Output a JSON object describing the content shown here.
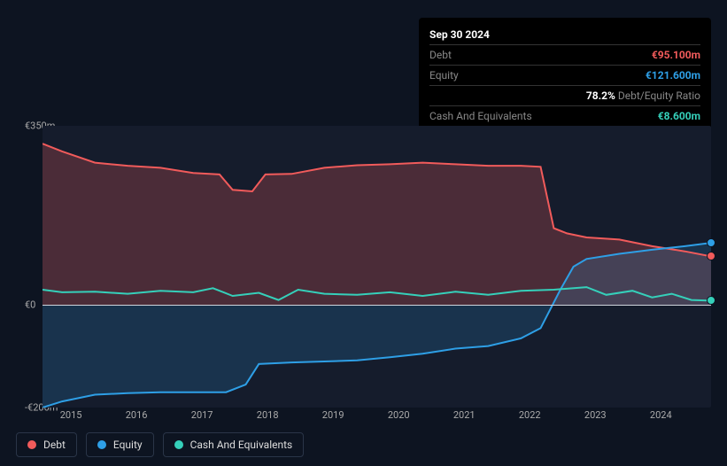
{
  "tooltip": {
    "date": "Sep 30 2024",
    "rows": [
      {
        "label": "Debt",
        "value": "€95.100m",
        "color": "#f15b5b"
      },
      {
        "label": "Equity",
        "value": "€121.600m",
        "color": "#2e9fe6"
      },
      {
        "label": "",
        "value": "78.2%",
        "suffix": "Debt/Equity Ratio",
        "color": "#ffffff"
      },
      {
        "label": "Cash And Equivalents",
        "value": "€8.600m",
        "color": "#35d0ba"
      }
    ]
  },
  "chart": {
    "type": "line-area",
    "background": "#151c2c",
    "page_background": "#0d1421",
    "ylim": [
      -200,
      350
    ],
    "y_ticks": [
      {
        "v": 350,
        "label": "€350m"
      },
      {
        "v": 0,
        "label": "€0"
      },
      {
        "v": -200,
        "label": "-€200m"
      }
    ],
    "x_years": [
      2015,
      2016,
      2017,
      2018,
      2019,
      2020,
      2021,
      2022,
      2023,
      2024
    ],
    "x_range": [
      2014.7,
      2024.9
    ],
    "zero_line_color": "#cfd4dc",
    "grid_color": "#2a3548",
    "series": {
      "debt": {
        "color": "#f15b5b",
        "fill": "rgba(241,91,91,0.25)",
        "points": [
          [
            2014.7,
            315
          ],
          [
            2015.0,
            300
          ],
          [
            2015.5,
            278
          ],
          [
            2016.0,
            272
          ],
          [
            2016.5,
            268
          ],
          [
            2017.0,
            258
          ],
          [
            2017.4,
            255
          ],
          [
            2017.6,
            225
          ],
          [
            2017.9,
            222
          ],
          [
            2018.1,
            255
          ],
          [
            2018.5,
            256
          ],
          [
            2019.0,
            268
          ],
          [
            2019.5,
            273
          ],
          [
            2020.0,
            275
          ],
          [
            2020.5,
            278
          ],
          [
            2021.0,
            275
          ],
          [
            2021.5,
            272
          ],
          [
            2022.0,
            272
          ],
          [
            2022.3,
            270
          ],
          [
            2022.5,
            150
          ],
          [
            2022.7,
            140
          ],
          [
            2023.0,
            132
          ],
          [
            2023.5,
            128
          ],
          [
            2024.0,
            115
          ],
          [
            2024.5,
            105
          ],
          [
            2024.9,
            95
          ]
        ]
      },
      "equity": {
        "color": "#2e9fe6",
        "fill": "rgba(46,159,230,0.18)",
        "points": [
          [
            2014.7,
            -200
          ],
          [
            2015.0,
            -188
          ],
          [
            2015.5,
            -175
          ],
          [
            2016.0,
            -172
          ],
          [
            2016.5,
            -170
          ],
          [
            2017.0,
            -170
          ],
          [
            2017.5,
            -170
          ],
          [
            2017.8,
            -155
          ],
          [
            2018.0,
            -115
          ],
          [
            2018.5,
            -112
          ],
          [
            2019.0,
            -110
          ],
          [
            2019.5,
            -108
          ],
          [
            2020.0,
            -102
          ],
          [
            2020.5,
            -95
          ],
          [
            2021.0,
            -85
          ],
          [
            2021.5,
            -80
          ],
          [
            2022.0,
            -65
          ],
          [
            2022.3,
            -45
          ],
          [
            2022.6,
            30
          ],
          [
            2022.8,
            75
          ],
          [
            2023.0,
            90
          ],
          [
            2023.5,
            100
          ],
          [
            2024.0,
            108
          ],
          [
            2024.5,
            115
          ],
          [
            2024.9,
            121.6
          ]
        ]
      },
      "cash": {
        "color": "#35d0ba",
        "fill": "none",
        "points": [
          [
            2014.7,
            30
          ],
          [
            2015.0,
            25
          ],
          [
            2015.5,
            26
          ],
          [
            2016.0,
            22
          ],
          [
            2016.5,
            28
          ],
          [
            2017.0,
            25
          ],
          [
            2017.3,
            33
          ],
          [
            2017.6,
            18
          ],
          [
            2018.0,
            24
          ],
          [
            2018.3,
            10
          ],
          [
            2018.6,
            30
          ],
          [
            2019.0,
            22
          ],
          [
            2019.5,
            20
          ],
          [
            2020.0,
            25
          ],
          [
            2020.5,
            18
          ],
          [
            2021.0,
            26
          ],
          [
            2021.5,
            20
          ],
          [
            2022.0,
            28
          ],
          [
            2022.5,
            30
          ],
          [
            2023.0,
            35
          ],
          [
            2023.3,
            20
          ],
          [
            2023.7,
            28
          ],
          [
            2024.0,
            15
          ],
          [
            2024.3,
            22
          ],
          [
            2024.6,
            10
          ],
          [
            2024.9,
            8.6
          ]
        ]
      }
    },
    "markers": [
      {
        "series": "equity",
        "x": 2024.9,
        "y": 121.6,
        "color": "#2e9fe6"
      },
      {
        "series": "debt",
        "x": 2024.9,
        "y": 95,
        "color": "#f15b5b"
      },
      {
        "series": "cash",
        "x": 2024.9,
        "y": 8.6,
        "color": "#35d0ba"
      }
    ]
  },
  "legend": [
    {
      "name": "Debt",
      "color": "#f15b5b"
    },
    {
      "name": "Equity",
      "color": "#2e9fe6"
    },
    {
      "name": "Cash And Equivalents",
      "color": "#35d0ba"
    }
  ]
}
